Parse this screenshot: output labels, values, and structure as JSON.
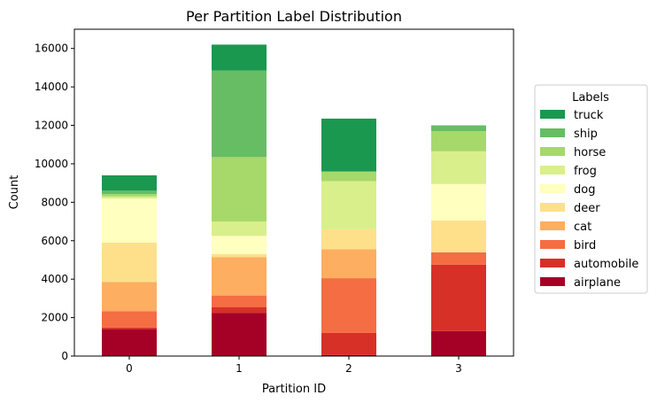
{
  "chart_data": {
    "type": "bar",
    "stacked": true,
    "title": "Per Partition Label Distribution",
    "xlabel": "Partition ID",
    "ylabel": "Count",
    "categories": [
      "0",
      "1",
      "2",
      "3"
    ],
    "ylim": [
      0,
      17000
    ],
    "yticks": [
      0,
      2000,
      4000,
      6000,
      8000,
      10000,
      12000,
      14000,
      16000
    ],
    "ytick_labels": [
      "0",
      "2000",
      "4000",
      "6000",
      "8000",
      "10000",
      "12000",
      "14000",
      "16000"
    ],
    "legend": {
      "title": "Labels",
      "placement": "center-right, outside plot"
    },
    "series": [
      {
        "name": "airplane",
        "color": "#a50026",
        "values": [
          1400,
          2250,
          50,
          1300
        ]
      },
      {
        "name": "automobile",
        "color": "#d73027",
        "values": [
          80,
          300,
          1150,
          3450
        ]
      },
      {
        "name": "bird",
        "color": "#f46d43",
        "values": [
          850,
          600,
          2850,
          650
        ]
      },
      {
        "name": "cat",
        "color": "#fdae61",
        "values": [
          1520,
          2000,
          1500,
          0
        ]
      },
      {
        "name": "deer",
        "color": "#fee08b",
        "values": [
          2050,
          150,
          1050,
          1650
        ]
      },
      {
        "name": "dog",
        "color": "#ffffbf",
        "values": [
          2300,
          950,
          0,
          1900
        ]
      },
      {
        "name": "frog",
        "color": "#d9ef8b",
        "values": [
          100,
          750,
          2500,
          1700
        ]
      },
      {
        "name": "horse",
        "color": "#a6d96a",
        "values": [
          120,
          3350,
          500,
          1050
        ]
      },
      {
        "name": "ship",
        "color": "#66bd63",
        "values": [
          180,
          4500,
          0,
          300
        ]
      },
      {
        "name": "truck",
        "color": "#1a9850",
        "values": [
          800,
          1350,
          2750,
          0
        ]
      }
    ]
  }
}
